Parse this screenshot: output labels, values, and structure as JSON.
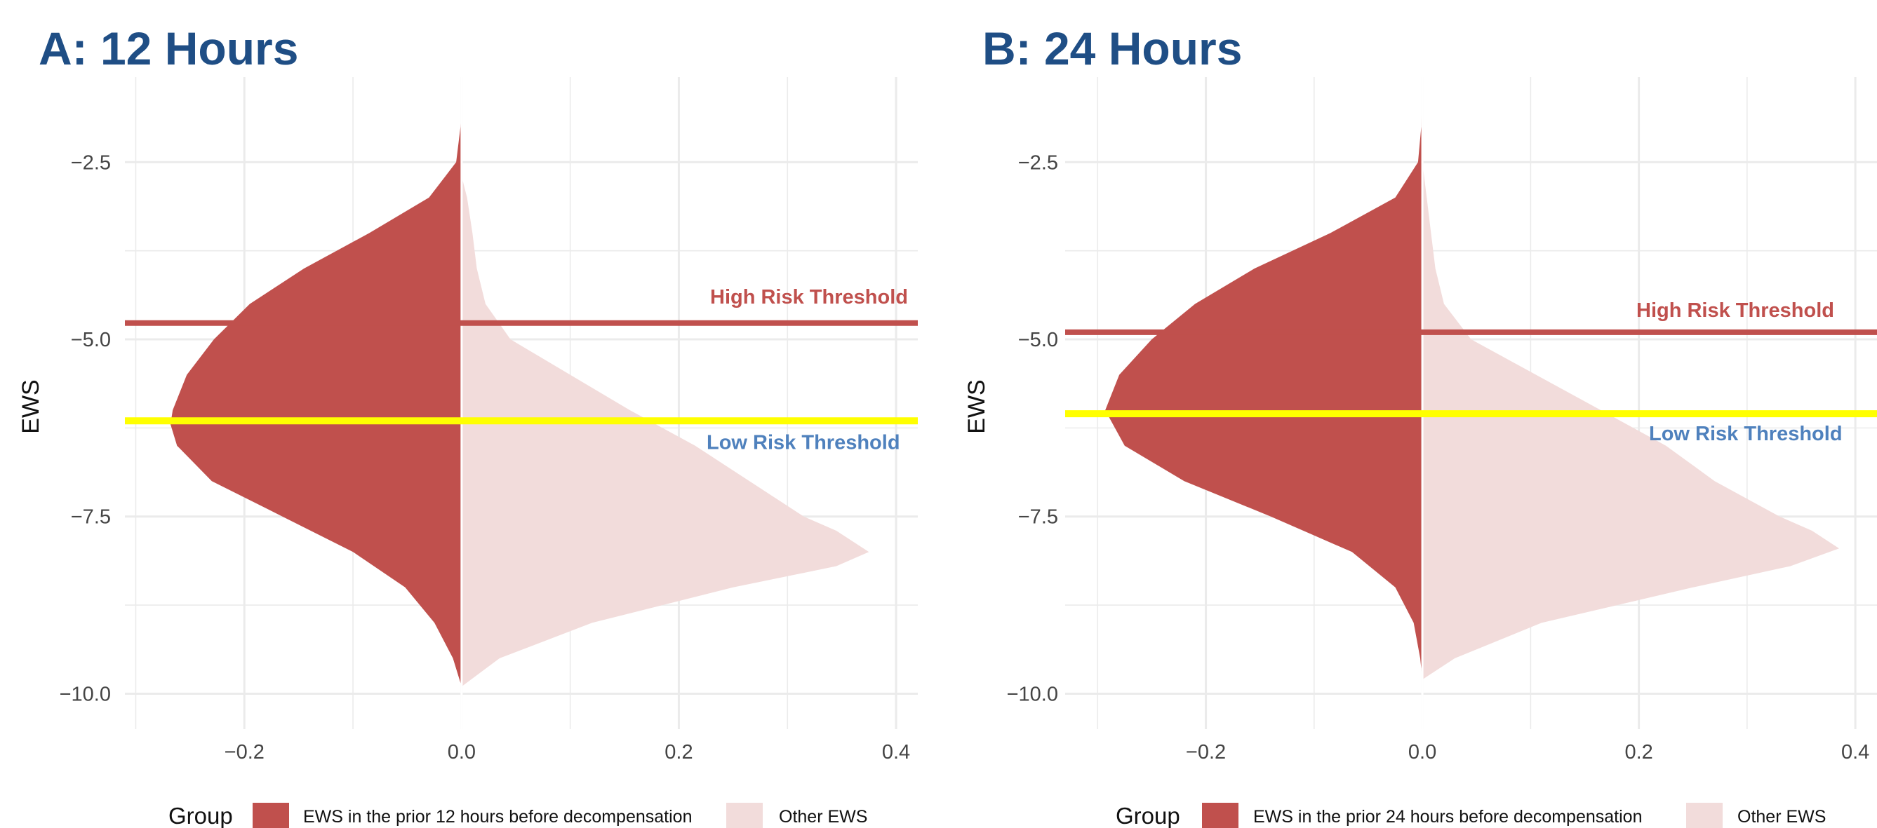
{
  "colors": {
    "background": "#ffffff",
    "grid": "#ebebeb",
    "title": "#1f4e85",
    "series_prior": "#c0504d",
    "series_other": "#f2dcdb",
    "high_threshold": "#c0504d",
    "low_threshold": "#ffff00",
    "high_label": "#c0504d",
    "low_label": "#4f81bd"
  },
  "chart_data": [
    {
      "type": "area",
      "title": "A: 12 Hours",
      "xlabel": "",
      "ylabel": "EWS",
      "xlim": [
        -0.31,
        0.42
      ],
      "ylim": [
        -10.5,
        -1.3
      ],
      "x_ticks": [
        -0.2,
        0.0,
        0.2,
        0.4
      ],
      "x_tick_labels": [
        "−0.2",
        "0.0",
        "0.2",
        "0.4"
      ],
      "y_ticks": [
        -2.5,
        -5.0,
        -7.5,
        -10.0
      ],
      "y_tick_labels": [
        "−2.5",
        "−5.0",
        "−7.5",
        "−10.0"
      ],
      "grid": true,
      "legend_position": "bottom",
      "legend_title": "Group",
      "thresholds": [
        {
          "name": "High Risk Threshold",
          "y": -4.77
        },
        {
          "name": "Low Risk Threshold",
          "y": -6.15
        }
      ],
      "series": [
        {
          "name": "EWS in the prior 12 hours before decompensation",
          "side": "left",
          "points": [
            [
              -1.6,
              0
            ],
            [
              -2.0,
              -0.001
            ],
            [
              -2.5,
              -0.005
            ],
            [
              -3.0,
              -0.03
            ],
            [
              -3.5,
              -0.085
            ],
            [
              -4.0,
              -0.145
            ],
            [
              -4.5,
              -0.195
            ],
            [
              -5.0,
              -0.228
            ],
            [
              -5.5,
              -0.253
            ],
            [
              -6.0,
              -0.266
            ],
            [
              -6.2,
              -0.268
            ],
            [
              -6.5,
              -0.262
            ],
            [
              -7.0,
              -0.23
            ],
            [
              -7.5,
              -0.165
            ],
            [
              -8.0,
              -0.1
            ],
            [
              -8.5,
              -0.052
            ],
            [
              -9.0,
              -0.025
            ],
            [
              -9.5,
              -0.008
            ],
            [
              -9.9,
              0
            ]
          ]
        },
        {
          "name": "Other EWS",
          "side": "right",
          "points": [
            [
              -2.7,
              0
            ],
            [
              -3.0,
              0.005
            ],
            [
              -3.5,
              0.01
            ],
            [
              -4.0,
              0.014
            ],
            [
              -4.5,
              0.022
            ],
            [
              -5.0,
              0.045
            ],
            [
              -5.5,
              0.1
            ],
            [
              -6.0,
              0.155
            ],
            [
              -6.5,
              0.215
            ],
            [
              -7.0,
              0.265
            ],
            [
              -7.5,
              0.315
            ],
            [
              -7.7,
              0.345
            ],
            [
              -8.0,
              0.375
            ],
            [
              -8.2,
              0.345
            ],
            [
              -8.5,
              0.25
            ],
            [
              -9.0,
              0.12
            ],
            [
              -9.5,
              0.035
            ],
            [
              -9.9,
              0
            ]
          ]
        }
      ]
    },
    {
      "type": "area",
      "title": "B: 24 Hours",
      "xlabel": "",
      "ylabel": "EWS",
      "xlim": [
        -0.33,
        0.42
      ],
      "ylim": [
        -10.5,
        -1.3
      ],
      "x_ticks": [
        -0.2,
        0.0,
        0.2,
        0.4
      ],
      "x_tick_labels": [
        "−0.2",
        "0.0",
        "0.2",
        "0.4"
      ],
      "y_ticks": [
        -2.5,
        -5.0,
        -7.5,
        -10.0
      ],
      "y_tick_labels": [
        "−2.5",
        "−5.0",
        "−7.5",
        "−10.0"
      ],
      "grid": true,
      "legend_position": "bottom",
      "legend_title": "Group",
      "thresholds": [
        {
          "name": "High Risk Threshold",
          "y": -4.9
        },
        {
          "name": "Low Risk Threshold",
          "y": -6.05
        }
      ],
      "series": [
        {
          "name": "EWS in the prior 24 hours before decompensation",
          "side": "left",
          "points": [
            [
              -1.5,
              0
            ],
            [
              -2.0,
              -0.001
            ],
            [
              -2.5,
              -0.004
            ],
            [
              -3.0,
              -0.025
            ],
            [
              -3.5,
              -0.085
            ],
            [
              -4.0,
              -0.155
            ],
            [
              -4.5,
              -0.21
            ],
            [
              -5.0,
              -0.25
            ],
            [
              -5.5,
              -0.28
            ],
            [
              -6.0,
              -0.293
            ],
            [
              -6.5,
              -0.275
            ],
            [
              -7.0,
              -0.22
            ],
            [
              -7.5,
              -0.14
            ],
            [
              -8.0,
              -0.065
            ],
            [
              -8.5,
              -0.025
            ],
            [
              -9.0,
              -0.008
            ],
            [
              -9.5,
              -0.002
            ],
            [
              -9.8,
              0
            ]
          ]
        },
        {
          "name": "Other EWS",
          "side": "right",
          "points": [
            [
              -2.5,
              0
            ],
            [
              -3.0,
              0.004
            ],
            [
              -3.5,
              0.008
            ],
            [
              -4.0,
              0.012
            ],
            [
              -4.5,
              0.02
            ],
            [
              -5.0,
              0.045
            ],
            [
              -5.5,
              0.105
            ],
            [
              -6.0,
              0.165
            ],
            [
              -6.5,
              0.225
            ],
            [
              -7.0,
              0.27
            ],
            [
              -7.5,
              0.33
            ],
            [
              -7.7,
              0.36
            ],
            [
              -7.95,
              0.385
            ],
            [
              -8.2,
              0.34
            ],
            [
              -8.5,
              0.25
            ],
            [
              -9.0,
              0.11
            ],
            [
              -9.5,
              0.03
            ],
            [
              -9.8,
              0
            ]
          ]
        }
      ]
    }
  ]
}
